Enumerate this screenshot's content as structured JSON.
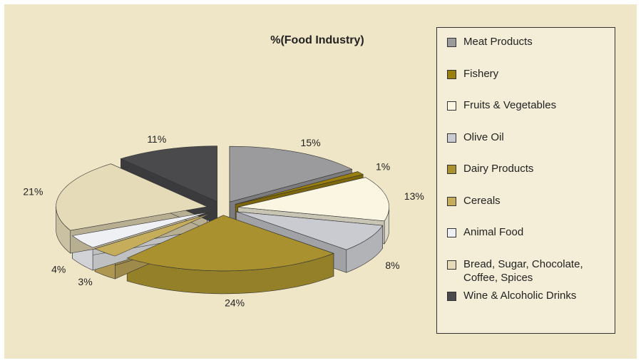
{
  "chart_data": {
    "type": "pie3d",
    "title": "%(Food Industry)",
    "categories": [
      "Meat Products",
      "Fishery",
      "Fruits & Vegetables",
      "Olive Oil",
      "Dairy Products",
      "Cereals",
      "Animal Food",
      "Bread, Sugar, Chocolate, Coffee, Spices",
      "Wine & Alcoholic Drinks"
    ],
    "values": [
      15,
      1,
      13,
      8,
      24,
      3,
      4,
      21,
      11
    ],
    "value_labels": [
      "15%",
      "1%",
      "13%",
      "8%",
      "24%",
      "3%",
      "4%",
      "21%",
      "11%"
    ],
    "colors": [
      "#9b9b9d",
      "#9a7f0c",
      "#fbf6e2",
      "#c9cbd0",
      "#a8912e",
      "#c6ad5c",
      "#eef0f3",
      "#e6dbb8",
      "#4a4a4c"
    ],
    "legend": "right"
  }
}
